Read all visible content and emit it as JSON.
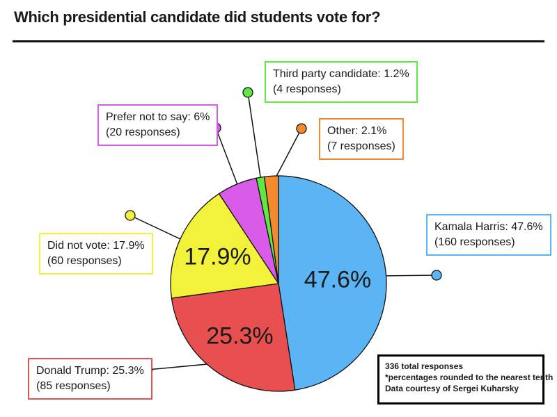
{
  "title": "Which presidential candidate did students vote for?",
  "chart_data": {
    "type": "pie",
    "title": "Which presidential candidate did students vote for?",
    "slices": [
      {
        "key": "harris",
        "label": "Kamala Harris",
        "percent": 47.6,
        "responses": 160,
        "color": "#5bb5f5",
        "callout": "Kamala Harris: 47.6%",
        "responses_text": "(160 responses)",
        "inner_label": "47.6%"
      },
      {
        "key": "trump",
        "label": "Donald Trump",
        "percent": 25.3,
        "responses": 85,
        "color": "#e85050",
        "callout": "Donald Trump: 25.3%",
        "responses_text": "(85 responses)",
        "inner_label": "25.3%"
      },
      {
        "key": "novote",
        "label": "Did not vote",
        "percent": 17.9,
        "responses": 60,
        "color": "#f2f23a",
        "callout": "Did not vote: 17.9%",
        "responses_text": "(60 responses)",
        "inner_label": "17.9%"
      },
      {
        "key": "prefer",
        "label": "Prefer not to say",
        "percent": 6,
        "responses": 20,
        "color": "#d95ce8",
        "callout": "Prefer not to say: 6%",
        "responses_text": "(20 responses)",
        "inner_label": ""
      },
      {
        "key": "third",
        "label": "Third party candidate",
        "percent": 1.2,
        "responses": 4,
        "color": "#5ee842",
        "callout": "Third party candidate:  1.2%",
        "responses_text": "(4 responses)",
        "inner_label": ""
      },
      {
        "key": "other",
        "label": "Other",
        "percent": 2.1,
        "responses": 7,
        "color": "#f58a2c",
        "callout": "Other: 2.1%",
        "responses_text": "(7 responses)",
        "inner_label": ""
      }
    ]
  },
  "note": {
    "line1": "336 total responses",
    "line2": "*percentages rounded to the nearest tenth",
    "line3": "Data courtesy of Sergei Kuharsky"
  }
}
